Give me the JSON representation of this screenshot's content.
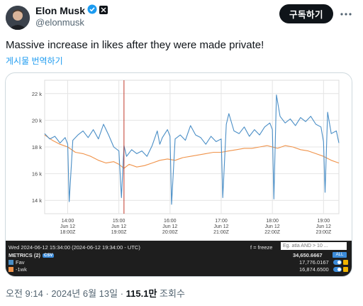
{
  "author": {
    "name": "Elon Musk",
    "handle": "@elonmusk"
  },
  "header": {
    "subscribe_label": "구독하기",
    "more_icon": "more-icon"
  },
  "tweet": {
    "text": "Massive increase in likes after they were made private!",
    "translate_label": "게시물 번역하기"
  },
  "footer": {
    "time": "오전 9:14 · 2024년 6월 13일 · ",
    "views_count": "115.1만",
    "views_label": " 조회수"
  },
  "chart_data": {
    "type": "line",
    "y_tick_labels": [
      "22 k",
      "20 k",
      "18 k",
      "16 k",
      "14 k"
    ],
    "y_ticks": [
      22000,
      20000,
      18000,
      16000,
      14000
    ],
    "ylim": [
      13000,
      23000
    ],
    "x_ticks": [
      {
        "time": "14:00",
        "date": "Jun 12",
        "utc": "18:00Z"
      },
      {
        "time": "15:00",
        "date": "Jun 12",
        "utc": "19:00Z"
      },
      {
        "time": "16:00",
        "date": "Jun 12",
        "utc": "20:00Z"
      },
      {
        "time": "17:00",
        "date": "Jun 12",
        "utc": "21:00Z"
      },
      {
        "time": "18:00",
        "date": "Jun 12",
        "utc": "22:00Z"
      },
      {
        "time": "19:00",
        "date": "Jun 12",
        "utc": "23:00Z"
      }
    ],
    "xlim": [
      13.55,
      19.3
    ],
    "cursor_x": 15.1,
    "grid": true,
    "series": [
      {
        "name": "Fav",
        "color": "#4a8ec6",
        "x": [
          13.55,
          13.65,
          13.75,
          13.85,
          13.95,
          14.0,
          14.03,
          14.1,
          14.2,
          14.3,
          14.4,
          14.5,
          14.6,
          14.7,
          14.8,
          14.9,
          15.0,
          15.05,
          15.1,
          15.15,
          15.25,
          15.35,
          15.45,
          15.55,
          15.65,
          15.75,
          15.8,
          15.85,
          15.95,
          16.0,
          16.03,
          16.1,
          16.2,
          16.3,
          16.4,
          16.5,
          16.6,
          16.7,
          16.8,
          16.9,
          17.0,
          17.03,
          17.1,
          17.15,
          17.25,
          17.35,
          17.45,
          17.55,
          17.65,
          17.75,
          17.85,
          17.95,
          18.0,
          18.03,
          18.08,
          18.15,
          18.25,
          18.35,
          18.45,
          18.55,
          18.65,
          18.75,
          18.85,
          18.95,
          19.0,
          19.03,
          19.08,
          19.15,
          19.25,
          19.3
        ],
        "values": [
          19000,
          18600,
          18800,
          18300,
          18700,
          18200,
          13900,
          18500,
          18900,
          19200,
          18700,
          19300,
          18600,
          19700,
          18900,
          18000,
          17700,
          14200,
          18100,
          17300,
          17800,
          17500,
          17700,
          17300,
          18100,
          19200,
          18200,
          18700,
          19300,
          18800,
          13700,
          18600,
          18900,
          18500,
          19600,
          18900,
          18700,
          18200,
          18800,
          18400,
          18600,
          14200,
          19700,
          20500,
          19200,
          19000,
          19500,
          18800,
          19300,
          18900,
          19500,
          19800,
          19300,
          14100,
          21900,
          20300,
          19800,
          20100,
          19600,
          20200,
          19900,
          20300,
          19700,
          19500,
          18400,
          14600,
          20600,
          19000,
          19200,
          18300
        ]
      },
      {
        "name": "-1wk",
        "color": "#f0934a",
        "x": [
          13.55,
          13.7,
          13.85,
          14.0,
          14.15,
          14.3,
          14.45,
          14.6,
          14.75,
          14.9,
          15.0,
          15.1,
          15.2,
          15.35,
          15.5,
          15.65,
          15.8,
          15.95,
          16.1,
          16.25,
          16.4,
          16.55,
          16.7,
          16.85,
          17.0,
          17.15,
          17.3,
          17.45,
          17.6,
          17.75,
          17.9,
          18.0,
          18.1,
          18.25,
          18.4,
          18.55,
          18.7,
          18.85,
          19.0,
          19.15,
          19.3
        ],
        "values": [
          18900,
          18500,
          18200,
          18000,
          17600,
          17500,
          17300,
          17000,
          16800,
          16900,
          16700,
          16400,
          16700,
          16500,
          16600,
          16800,
          17000,
          17100,
          17000,
          17200,
          17300,
          17400,
          17500,
          17600,
          17600,
          17700,
          17800,
          17900,
          17900,
          18000,
          18100,
          18000,
          17900,
          18100,
          18000,
          17800,
          17700,
          17500,
          17300,
          17000,
          16800
        ]
      }
    ]
  },
  "panel": {
    "timestamp": "Wed 2024-06-12 15:34:00 (2024-06-12 19:34:00 - UTC)",
    "freeze_label": "f = freeze",
    "search_placeholder": "Eg. atla AND > 10 ...",
    "metrics_label": "METRICS (2)",
    "csv_label": "CSV",
    "total_value": "34,650.6667",
    "all_label": "ALL",
    "rows": [
      {
        "label": "Fav",
        "value": "17,776.0167",
        "color": "#4a8ec6"
      },
      {
        "label": "-1wk",
        "value": "16,874.6500",
        "color": "#f0934a"
      }
    ]
  }
}
